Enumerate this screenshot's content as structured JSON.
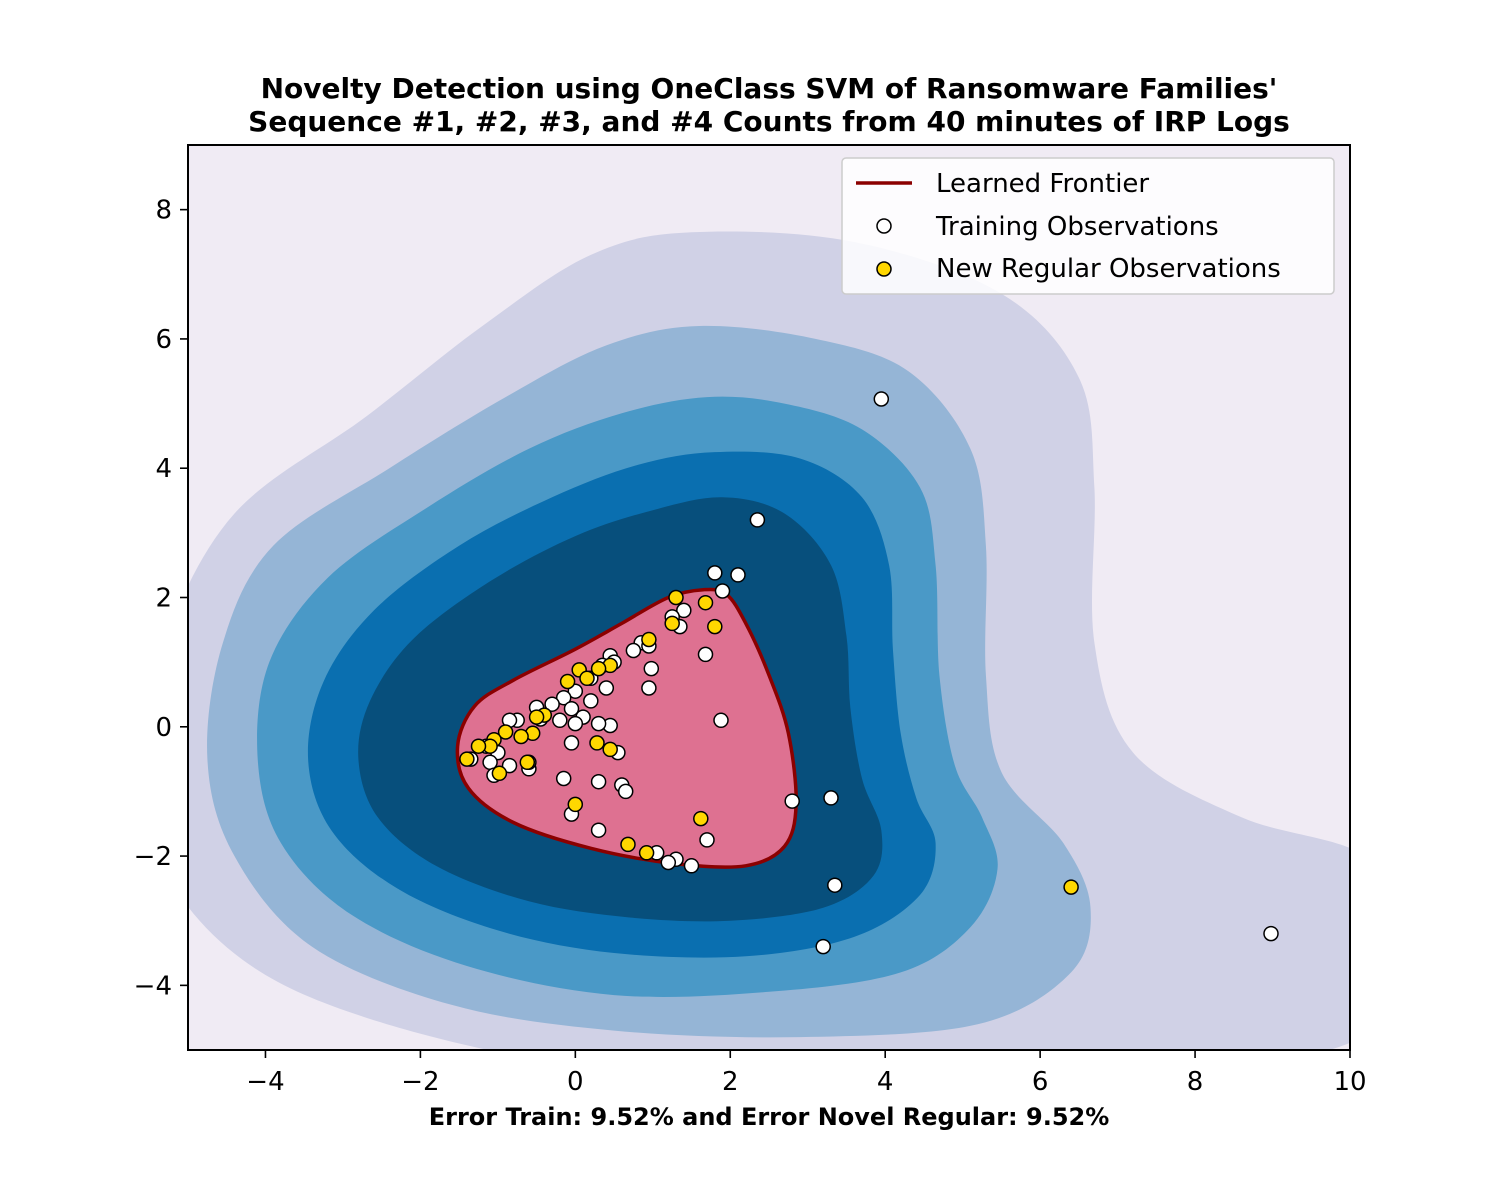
{
  "chart_data": {
    "type": "scatter",
    "title_lines": [
      "Novelty Detection using OneClass SVM of Ransomware Families'",
      "Sequence #1, #2, #3, and #4 Counts from 40 minutes of IRP Logs"
    ],
    "xlabel": "Error Train: 9.52% and Error Novel Regular: 9.52%",
    "ylabel": "",
    "xlim": [
      -5,
      10
    ],
    "ylim": [
      -5,
      9
    ],
    "x_ticks": [
      -4,
      -2,
      0,
      2,
      4,
      6,
      8,
      10
    ],
    "y_ticks": [
      -4,
      -2,
      0,
      2,
      4,
      6,
      8
    ],
    "x_tick_labels": [
      "−4",
      "−2",
      "0",
      "2",
      "4",
      "6",
      "8",
      "10"
    ],
    "y_tick_labels": [
      "−4",
      "−2",
      "0",
      "2",
      "4",
      "6",
      "8"
    ],
    "legend_position": "top-right",
    "legend": [
      {
        "label": "Learned Frontier",
        "marker": "line",
        "color": "#8b0000"
      },
      {
        "label": "Training Observations",
        "marker": "circle",
        "color": "#ffffff"
      },
      {
        "label": "New Regular Observations",
        "marker": "circle",
        "color": "#ffd700"
      }
    ],
    "decision_regions": {
      "colors": [
        "#d0d1e6",
        "#95b5d6",
        "#4a99c7",
        "#0a6fb0",
        "#074f7c"
      ],
      "outside_color": "#f0ebf4",
      "inside_color": "#de7191",
      "frontier_color": "#8b0000"
    },
    "series": [
      {
        "name": "Training Observations",
        "color": "#ffffff",
        "points": [
          [
            3.95,
            5.07
          ],
          [
            2.35,
            3.2
          ],
          [
            1.8,
            2.38
          ],
          [
            2.1,
            2.35
          ],
          [
            1.9,
            2.1
          ],
          [
            1.4,
            1.8
          ],
          [
            1.35,
            1.55
          ],
          [
            1.25,
            1.7
          ],
          [
            0.85,
            1.3
          ],
          [
            0.95,
            1.25
          ],
          [
            0.75,
            1.18
          ],
          [
            1.68,
            1.12
          ],
          [
            0.45,
            1.1
          ],
          [
            0.5,
            1.0
          ],
          [
            0.35,
            0.95
          ],
          [
            0.98,
            0.9
          ],
          [
            0.2,
            0.75
          ],
          [
            0.95,
            0.6
          ],
          [
            0.4,
            0.6
          ],
          [
            0.0,
            0.55
          ],
          [
            -0.15,
            0.45
          ],
          [
            0.2,
            0.4
          ],
          [
            -0.3,
            0.35
          ],
          [
            -0.5,
            0.3
          ],
          [
            -0.05,
            0.28
          ],
          [
            0.1,
            0.15
          ],
          [
            -0.45,
            0.12
          ],
          [
            -0.75,
            0.1
          ],
          [
            -0.85,
            0.1
          ],
          [
            0.0,
            0.05
          ],
          [
            1.88,
            0.1
          ],
          [
            0.45,
            0.02
          ],
          [
            0.3,
            0.05
          ],
          [
            -0.2,
            0.1
          ],
          [
            -0.05,
            -0.25
          ],
          [
            0.55,
            -0.4
          ],
          [
            -1.15,
            -0.3
          ],
          [
            -1.0,
            -0.4
          ],
          [
            -1.35,
            -0.5
          ],
          [
            -1.1,
            -0.55
          ],
          [
            -0.85,
            -0.6
          ],
          [
            -0.6,
            -0.65
          ],
          [
            -0.6,
            -0.55
          ],
          [
            -1.05,
            -0.75
          ],
          [
            -0.15,
            -0.8
          ],
          [
            0.3,
            -0.85
          ],
          [
            0.6,
            -0.9
          ],
          [
            0.65,
            -1.0
          ],
          [
            2.8,
            -1.15
          ],
          [
            3.3,
            -1.1
          ],
          [
            -0.05,
            -1.35
          ],
          [
            0.3,
            -1.6
          ],
          [
            1.7,
            -1.75
          ],
          [
            1.05,
            -1.95
          ],
          [
            1.3,
            -2.05
          ],
          [
            1.2,
            -2.1
          ],
          [
            1.5,
            -2.15
          ],
          [
            3.35,
            -2.45
          ],
          [
            3.2,
            -3.4
          ],
          [
            8.98,
            -3.2
          ]
        ]
      },
      {
        "name": "New Regular Observations",
        "color": "#ffd700",
        "points": [
          [
            1.3,
            2.0
          ],
          [
            1.68,
            1.92
          ],
          [
            1.8,
            1.55
          ],
          [
            1.25,
            1.6
          ],
          [
            0.95,
            1.35
          ],
          [
            0.45,
            0.95
          ],
          [
            0.3,
            0.9
          ],
          [
            0.05,
            0.88
          ],
          [
            0.15,
            0.75
          ],
          [
            -0.1,
            0.7
          ],
          [
            -0.4,
            0.18
          ],
          [
            -0.5,
            0.15
          ],
          [
            -0.55,
            -0.1
          ],
          [
            -0.7,
            -0.15
          ],
          [
            -0.9,
            -0.08
          ],
          [
            -1.05,
            -0.2
          ],
          [
            -1.1,
            -0.3
          ],
          [
            -1.25,
            -0.3
          ],
          [
            -1.4,
            -0.5
          ],
          [
            -0.62,
            -0.55
          ],
          [
            -0.98,
            -0.72
          ],
          [
            0.28,
            -0.25
          ],
          [
            0.45,
            -0.35
          ],
          [
            0.0,
            -1.2
          ],
          [
            1.62,
            -1.42
          ],
          [
            0.68,
            -1.82
          ],
          [
            0.92,
            -1.95
          ],
          [
            6.4,
            -2.48
          ]
        ]
      }
    ]
  }
}
